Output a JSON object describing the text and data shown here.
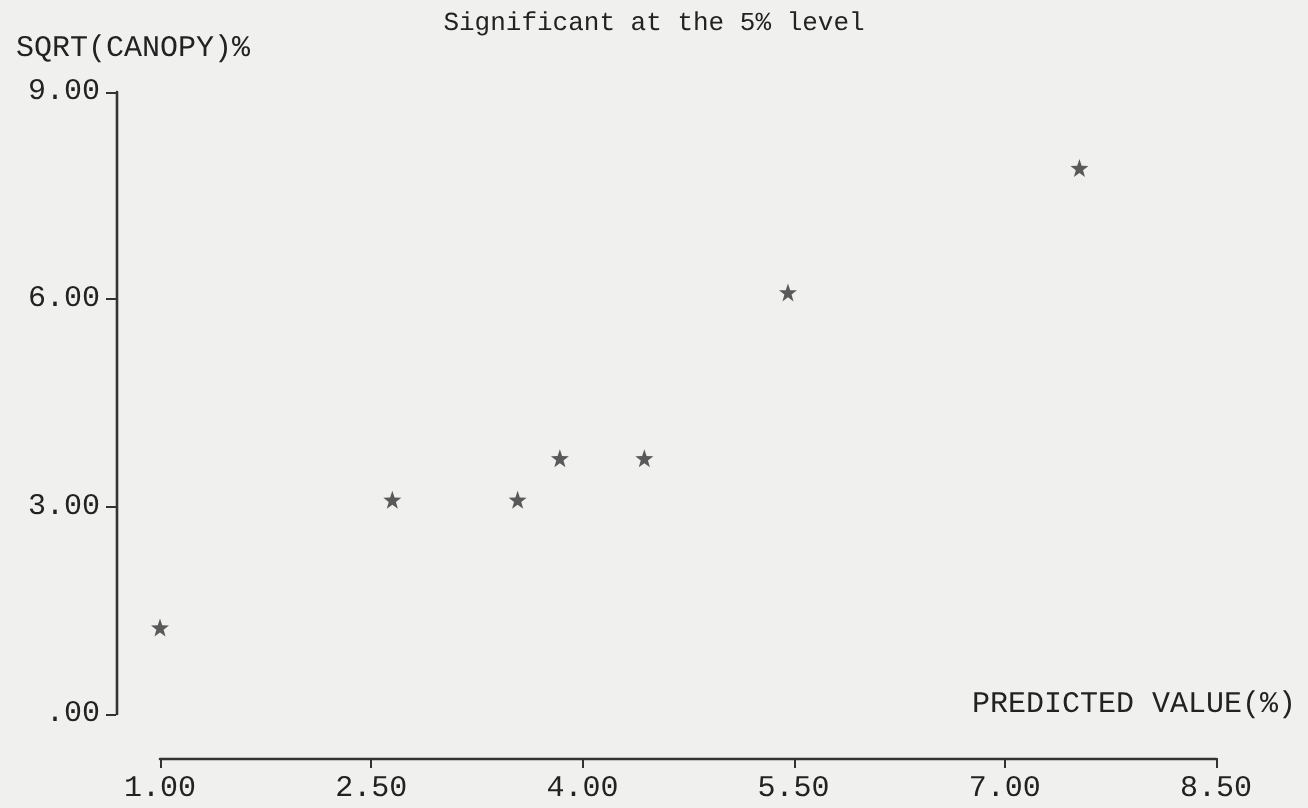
{
  "chart_data": {
    "type": "scatter",
    "title": "Significant at the 5% level",
    "xlabel": "PREDICTED VALUE(%)",
    "ylabel": "SQRT(CANOPY)%",
    "x": [
      1.0,
      2.65,
      3.54,
      3.84,
      4.44,
      5.46,
      7.53
    ],
    "values": [
      1.25,
      3.1,
      3.1,
      3.7,
      3.7,
      6.1,
      7.9
    ],
    "color": "#333333",
    "marker": "star",
    "xlim": [
      1,
      8.5
    ],
    "xticks": [
      {
        "value": 1,
        "label": "1.00"
      },
      {
        "value": 2.5,
        "label": "2.50"
      },
      {
        "value": 4,
        "label": "4.00"
      },
      {
        "value": 5.5,
        "label": "5.50"
      },
      {
        "value": 7,
        "label": "7.00"
      },
      {
        "value": 8.5,
        "label": "8.50"
      }
    ],
    "ylim": [
      0,
      9
    ],
    "yticks": [
      {
        "value": 0,
        "label": ".00"
      },
      {
        "value": 3,
        "label": "3.00"
      },
      {
        "value": 6,
        "label": "6.00"
      },
      {
        "value": 9,
        "label": "9.00"
      }
    ]
  }
}
